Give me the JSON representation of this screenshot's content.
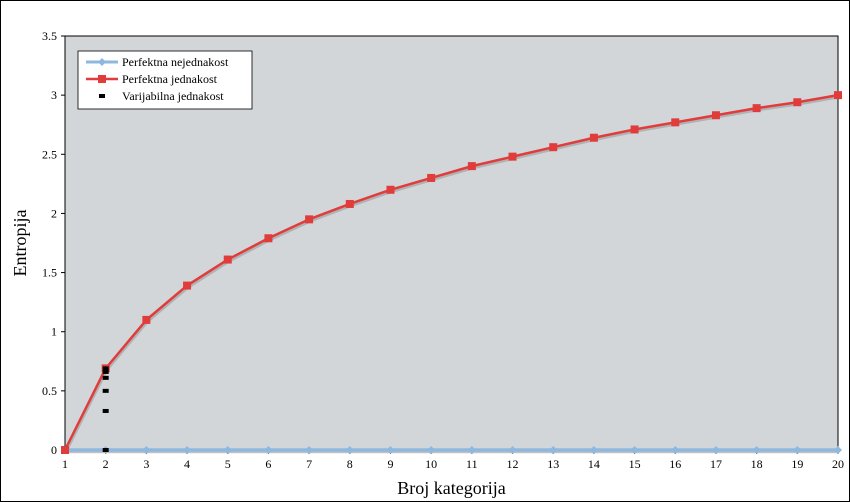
{
  "chart_data": {
    "type": "line",
    "xlabel": "Broj kategorija",
    "ylabel": "Entropija",
    "xlim": [
      1,
      20
    ],
    "ylim": [
      0,
      3.5
    ],
    "x_ticks": [
      1,
      2,
      3,
      4,
      5,
      6,
      7,
      8,
      9,
      10,
      11,
      12,
      13,
      14,
      15,
      16,
      17,
      18,
      19,
      20
    ],
    "y_ticks": [
      0,
      0.5,
      1,
      1.5,
      2,
      2.5,
      3,
      3.5
    ],
    "grid": false,
    "legend_position": "top-left",
    "plot_background": "#d3d6d9",
    "series": [
      {
        "name": "Perfektna nejednakost",
        "color": "#8fb8de",
        "marker": "diamond",
        "x": [
          1,
          2,
          3,
          4,
          5,
          6,
          7,
          8,
          9,
          10,
          11,
          12,
          13,
          14,
          15,
          16,
          17,
          18,
          19,
          20
        ],
        "values": [
          0,
          0,
          0,
          0,
          0,
          0,
          0,
          0,
          0,
          0,
          0,
          0,
          0,
          0,
          0,
          0,
          0,
          0,
          0,
          0
        ]
      },
      {
        "name": "Perfektna jednakost",
        "color": "#e03c3c",
        "marker": "square",
        "x": [
          1,
          2,
          3,
          4,
          5,
          6,
          7,
          8,
          9,
          10,
          11,
          12,
          13,
          14,
          15,
          16,
          17,
          18,
          19,
          20
        ],
        "values": [
          0,
          0.69,
          1.1,
          1.39,
          1.61,
          1.79,
          1.95,
          2.08,
          2.2,
          2.3,
          2.4,
          2.48,
          2.56,
          2.64,
          2.71,
          2.77,
          2.83,
          2.89,
          2.94,
          3.0
        ]
      },
      {
        "name": "Varijabilna jednakost",
        "color": "#000000",
        "marker": "dash",
        "x": [
          2,
          2,
          2,
          2,
          2,
          2
        ],
        "values": [
          0,
          0.33,
          0.5,
          0.61,
          0.66,
          0.69
        ]
      }
    ]
  }
}
